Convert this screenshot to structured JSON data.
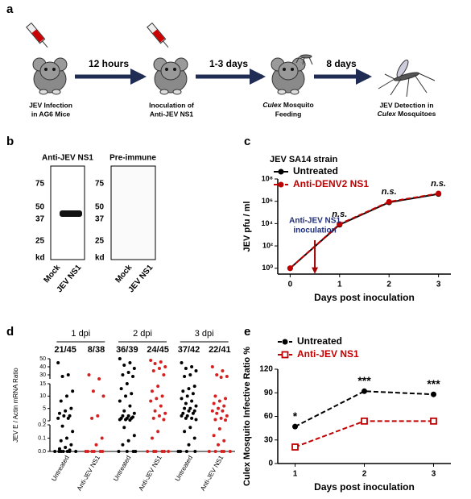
{
  "panel_labels": [
    "a",
    "b",
    "c",
    "d",
    "e"
  ],
  "diagram": {
    "arrows": [
      "12 hours",
      "1-3 days",
      "8 days"
    ],
    "step1": [
      "JEV Infection",
      "in AG6 Mice"
    ],
    "step2": [
      "Inoculation of",
      "Anti-JEV NS1"
    ],
    "step3": {
      "italic": "Culex",
      "rest": " Mosquito",
      "line2": "Feeding"
    },
    "step4": {
      "line1": "JEV Detection in",
      "italic": "Culex",
      "rest": " Mosquitoes"
    }
  },
  "blots": [
    {
      "title": "Anti-JEV NS1",
      "markers": [
        "75",
        "50",
        "37",
        "25",
        "kd"
      ],
      "lanes": [
        "Mock",
        "JEV NS1"
      ]
    },
    {
      "title": "Pre-immune",
      "markers": [
        "75",
        "50",
        "37",
        "25",
        "kd"
      ],
      "lanes": [
        "Mock",
        "JEV NS1"
      ]
    }
  ],
  "chart_data": [
    {
      "type": "line",
      "title": "JEV SA14 strain",
      "xlabel": "Days post inoculation",
      "ylabel": "JEV pfu / ml",
      "x": [
        0,
        1,
        2,
        3
      ],
      "xlim": [
        -0.25,
        3.25
      ],
      "xticks": [
        0,
        1,
        2,
        3
      ],
      "yscale": "log",
      "ylim": [
        0.3,
        100000000
      ],
      "yticks": [
        {
          "value": 1,
          "label": "10⁰"
        },
        {
          "value": 100,
          "label": "10²"
        },
        {
          "value": 10000,
          "label": "10⁴"
        },
        {
          "value": 1000000,
          "label": "10⁶"
        },
        {
          "value": 100000000,
          "label": "10⁸"
        }
      ],
      "series": [
        {
          "name": "Untreated",
          "color": "#000000",
          "marker": "circle",
          "dashed": false,
          "values": [
            1,
            8000,
            800000,
            4500000
          ]
        },
        {
          "name": "Anti-DENV2 NS1",
          "color": "#c00000",
          "marker": "circle",
          "dashed": true,
          "values": [
            1,
            9000,
            900000,
            5000000
          ]
        }
      ],
      "annotations": [
        "n.s.",
        "n.s.",
        "n.s."
      ],
      "inoculation_note": [
        "Anti-JEV NS1",
        "inoculation"
      ],
      "inoculation_day": 0.5
    },
    {
      "type": "dot",
      "ylabel": "JEV E / Actin mRNA Ratio",
      "categories": [
        "Untreated",
        "Anti-JEV NS1"
      ],
      "colors": [
        "#000000",
        "#d42020"
      ],
      "y_segments": [
        {
          "lim": [
            0,
            0.2
          ],
          "ticks": [
            {
              "value": 0,
              "label": "0.0"
            },
            0.1,
            0.2
          ]
        },
        {
          "lim": [
            0,
            15
          ],
          "ticks": [
            0,
            5,
            10,
            15
          ]
        },
        {
          "lim": [
            25,
            50
          ],
          "ticks": [
            30,
            40,
            50
          ]
        }
      ],
      "groups": [
        {
          "label": "1 dpi",
          "ratios": [
            "21/45",
            "8/38"
          ],
          "values": [
            [
              45,
              30,
              28,
              12,
              10,
              8,
              5,
              4,
              3,
              2,
              2,
              1,
              1,
              0.19,
              0.15,
              0.1,
              0.08,
              0.05,
              0.03,
              0.02,
              0.01,
              0,
              0,
              0,
              0,
              0,
              0,
              0
            ],
            [
              30,
              25,
              12,
              10,
              2,
              1,
              0.1,
              0.05,
              0,
              0,
              0,
              0,
              0,
              0
            ]
          ]
        },
        {
          "label": "2 dpi",
          "ratios": [
            "36/39",
            "24/45"
          ],
          "values": [
            [
              50,
              45,
              42,
              38,
              33,
              30,
              28,
              15,
              13,
              11,
              10,
              8,
              6,
              4,
              3,
              2,
              2,
              1.5,
              1,
              1,
              1,
              0.5,
              0.5,
              0.3,
              0.18,
              0.12,
              0.08,
              0.05,
              0,
              0,
              0,
              0
            ],
            [
              48,
              46,
              44,
              40,
              38,
              35,
              30,
              14,
              12,
              10,
              9,
              8,
              6,
              4,
              3,
              2,
              1,
              0.5,
              0.15,
              0.1,
              0,
              0,
              0,
              0,
              0,
              0
            ]
          ]
        },
        {
          "label": "3 dpi",
          "ratios": [
            "37/42",
            "22/41"
          ],
          "values": [
            [
              45,
              40,
              38,
              35,
              30,
              28,
              14,
              13,
              12,
              11,
              10,
              9,
              8,
              7,
              6,
              5,
              5,
              4,
              4,
              3,
              3,
              2,
              2,
              1,
              1,
              0.5,
              0.18,
              0.15,
              0.1,
              0.05,
              0,
              0,
              0,
              0
            ],
            [
              40,
              35,
              30,
              28,
              27,
              10,
              9,
              8,
              7,
              6,
              5,
              4,
              4,
              3,
              2,
              1,
              0.5,
              0.3,
              0.17,
              0.12,
              0.08,
              0.05,
              0,
              0,
              0,
              0,
              0
            ]
          ]
        }
      ]
    },
    {
      "type": "line",
      "xlabel": "Days post inoculation",
      "ylabel": "Culex Mosquito Infective  Ratio %",
      "x": [
        1,
        2,
        3
      ],
      "xlim": [
        0.75,
        3.25
      ],
      "xticks": [
        1,
        2,
        3
      ],
      "ylim": [
        0,
        120
      ],
      "yticks": [
        0,
        30,
        60,
        90,
        120
      ],
      "series": [
        {
          "name": "Untreated",
          "color": "#000000",
          "marker": "circle",
          "dashed": true,
          "values": [
            47,
            92,
            88
          ]
        },
        {
          "name": "Anti-JEV NS1",
          "color": "#c00000",
          "marker": "open-square",
          "dashed": true,
          "values": [
            21,
            54,
            54
          ]
        }
      ],
      "annotations": [
        "*",
        "***",
        "***"
      ]
    }
  ]
}
